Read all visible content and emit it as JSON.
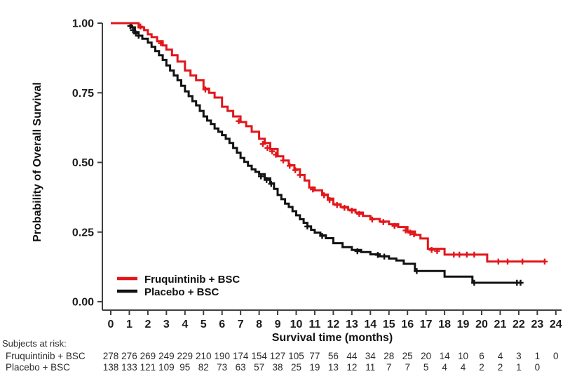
{
  "chart_data": {
    "type": "line",
    "subtype": "kaplan-meier-step",
    "title": "",
    "xlabel": "Survival time (months)",
    "ylabel": "Probability of Overall Survival",
    "xlim": [
      0,
      24
    ],
    "ylim": [
      0.0,
      1.0
    ],
    "x_ticks": [
      "0",
      "1",
      "2",
      "3",
      "4",
      "5",
      "6",
      "7",
      "8",
      "9",
      "10",
      "11",
      "12",
      "13",
      "14",
      "15",
      "16",
      "17",
      "18",
      "19",
      "20",
      "21",
      "22",
      "23",
      "24"
    ],
    "y_ticks": [
      {
        "value": 0.0,
        "label": "0.00"
      },
      {
        "value": 0.25,
        "label": "0.25"
      },
      {
        "value": 0.5,
        "label": "0.50"
      },
      {
        "value": 0.75,
        "label": "0.75"
      },
      {
        "value": 1.0,
        "label": "1.00"
      }
    ],
    "grid": false,
    "legend_position": "inside-bottom-left",
    "series": [
      {
        "name": "Fruquintinib + BSC",
        "color": "#e2161b",
        "steps": [
          [
            0,
            1.0
          ],
          [
            1.3,
            1.0
          ],
          [
            1.5,
            0.985
          ],
          [
            1.8,
            0.975
          ],
          [
            2.0,
            0.96
          ],
          [
            2.2,
            0.95
          ],
          [
            2.5,
            0.935
          ],
          [
            2.8,
            0.92
          ],
          [
            3.0,
            0.905
          ],
          [
            3.3,
            0.885
          ],
          [
            3.6,
            0.862
          ],
          [
            4.0,
            0.83
          ],
          [
            4.3,
            0.812
          ],
          [
            4.6,
            0.795
          ],
          [
            5.0,
            0.765
          ],
          [
            5.3,
            0.75
          ],
          [
            5.6,
            0.733
          ],
          [
            6.0,
            0.7
          ],
          [
            6.3,
            0.685
          ],
          [
            6.6,
            0.665
          ],
          [
            7.0,
            0.645
          ],
          [
            7.3,
            0.63
          ],
          [
            7.6,
            0.61
          ],
          [
            8.0,
            0.585
          ],
          [
            8.3,
            0.57
          ],
          [
            8.6,
            0.548
          ],
          [
            9.0,
            0.522
          ],
          [
            9.3,
            0.507
          ],
          [
            9.6,
            0.49
          ],
          [
            9.9,
            0.475
          ],
          [
            10.2,
            0.455
          ],
          [
            10.45,
            0.435
          ],
          [
            10.7,
            0.41
          ],
          [
            11.0,
            0.4
          ],
          [
            11.4,
            0.385
          ],
          [
            11.7,
            0.37
          ],
          [
            12.0,
            0.35
          ],
          [
            12.4,
            0.34
          ],
          [
            12.8,
            0.33
          ],
          [
            13.2,
            0.32
          ],
          [
            13.6,
            0.308
          ],
          [
            14.0,
            0.297
          ],
          [
            14.5,
            0.288
          ],
          [
            15.0,
            0.278
          ],
          [
            15.5,
            0.268
          ],
          [
            16.0,
            0.252
          ],
          [
            16.4,
            0.24
          ],
          [
            16.7,
            0.227
          ],
          [
            17.1,
            0.19
          ],
          [
            18.0,
            0.169
          ],
          [
            20.3,
            0.144
          ],
          [
            23.4,
            0.144
          ]
        ],
        "censors": [
          [
            1.6,
            0.988
          ],
          [
            2.7,
            0.928
          ],
          [
            5.1,
            0.762
          ],
          [
            6.9,
            0.648
          ],
          [
            8.2,
            0.566
          ],
          [
            8.45,
            0.552
          ],
          [
            8.7,
            0.54
          ],
          [
            8.9,
            0.528
          ],
          [
            9.3,
            0.507
          ],
          [
            9.65,
            0.488
          ],
          [
            9.95,
            0.472
          ],
          [
            10.2,
            0.455
          ],
          [
            10.9,
            0.403
          ],
          [
            11.5,
            0.382
          ],
          [
            11.8,
            0.365
          ],
          [
            12.2,
            0.347
          ],
          [
            12.6,
            0.337
          ],
          [
            13.0,
            0.327
          ],
          [
            13.4,
            0.315
          ],
          [
            14.1,
            0.295
          ],
          [
            14.7,
            0.286
          ],
          [
            15.3,
            0.272
          ],
          [
            15.9,
            0.256
          ],
          [
            16.15,
            0.248
          ],
          [
            16.35,
            0.242
          ],
          [
            17.3,
            0.186
          ],
          [
            17.6,
            0.182
          ],
          [
            18.5,
            0.169
          ],
          [
            18.8,
            0.169
          ],
          [
            19.2,
            0.169
          ],
          [
            19.6,
            0.169
          ],
          [
            20.9,
            0.144
          ],
          [
            21.4,
            0.144
          ],
          [
            22.2,
            0.144
          ],
          [
            23.4,
            0.144
          ]
        ]
      },
      {
        "name": "Placebo + BSC",
        "color": "#121212",
        "steps": [
          [
            0,
            1.0
          ],
          [
            0.95,
            1.0
          ],
          [
            1.1,
            0.985
          ],
          [
            1.3,
            0.968
          ],
          [
            1.5,
            0.955
          ],
          [
            1.7,
            0.944
          ],
          [
            2.0,
            0.93
          ],
          [
            2.2,
            0.915
          ],
          [
            2.4,
            0.9
          ],
          [
            2.6,
            0.885
          ],
          [
            2.8,
            0.868
          ],
          [
            3.0,
            0.848
          ],
          [
            3.2,
            0.83
          ],
          [
            3.4,
            0.812
          ],
          [
            3.6,
            0.795
          ],
          [
            3.8,
            0.775
          ],
          [
            4.0,
            0.755
          ],
          [
            4.2,
            0.738
          ],
          [
            4.4,
            0.72
          ],
          [
            4.6,
            0.705
          ],
          [
            4.8,
            0.685
          ],
          [
            5.0,
            0.665
          ],
          [
            5.2,
            0.65
          ],
          [
            5.4,
            0.638
          ],
          [
            5.6,
            0.622
          ],
          [
            5.8,
            0.61
          ],
          [
            6.0,
            0.598
          ],
          [
            6.2,
            0.585
          ],
          [
            6.4,
            0.57
          ],
          [
            6.6,
            0.552
          ],
          [
            6.8,
            0.535
          ],
          [
            7.0,
            0.516
          ],
          [
            7.2,
            0.502
          ],
          [
            7.4,
            0.488
          ],
          [
            7.6,
            0.475
          ],
          [
            7.8,
            0.466
          ],
          [
            8.0,
            0.458
          ],
          [
            8.3,
            0.443
          ],
          [
            8.6,
            0.425
          ],
          [
            8.8,
            0.405
          ],
          [
            9.0,
            0.383
          ],
          [
            9.2,
            0.368
          ],
          [
            9.4,
            0.352
          ],
          [
            9.6,
            0.34
          ],
          [
            9.8,
            0.325
          ],
          [
            10.0,
            0.31
          ],
          [
            10.2,
            0.296
          ],
          [
            10.4,
            0.283
          ],
          [
            10.6,
            0.27
          ],
          [
            10.8,
            0.258
          ],
          [
            11.0,
            0.248
          ],
          [
            11.3,
            0.238
          ],
          [
            11.6,
            0.228
          ],
          [
            12.0,
            0.21
          ],
          [
            12.5,
            0.196
          ],
          [
            13.0,
            0.186
          ],
          [
            13.5,
            0.178
          ],
          [
            14.0,
            0.17
          ],
          [
            14.5,
            0.163
          ],
          [
            15.0,
            0.155
          ],
          [
            15.4,
            0.148
          ],
          [
            15.8,
            0.136
          ],
          [
            16.4,
            0.11
          ],
          [
            18.0,
            0.09
          ],
          [
            19.5,
            0.068
          ],
          [
            22.1,
            0.068
          ]
        ],
        "censors": [
          [
            1.05,
            0.99
          ],
          [
            1.2,
            0.975
          ],
          [
            1.35,
            0.963
          ],
          [
            1.5,
            0.955
          ],
          [
            8.1,
            0.45
          ],
          [
            8.4,
            0.437
          ],
          [
            8.65,
            0.423
          ],
          [
            10.6,
            0.27
          ],
          [
            11.4,
            0.236
          ],
          [
            13.3,
            0.181
          ],
          [
            14.4,
            0.168
          ],
          [
            14.75,
            0.162
          ],
          [
            16.5,
            0.11
          ],
          [
            19.6,
            0.068
          ],
          [
            21.9,
            0.068
          ],
          [
            22.1,
            0.068
          ]
        ]
      }
    ]
  },
  "risk_table": {
    "heading": "Subjects at risk:",
    "rows": [
      {
        "label": "Fruquintinib + BSC",
        "counts": [
          278,
          276,
          269,
          249,
          229,
          210,
          190,
          174,
          154,
          127,
          105,
          77,
          56,
          44,
          34,
          28,
          25,
          20,
          14,
          10,
          6,
          4,
          3,
          1,
          0
        ]
      },
      {
        "label": "Placebo + BSC",
        "counts": [
          138,
          133,
          121,
          109,
          95,
          82,
          73,
          63,
          57,
          38,
          25,
          19,
          13,
          12,
          11,
          7,
          7,
          5,
          4,
          4,
          2,
          2,
          1,
          0
        ]
      }
    ]
  }
}
